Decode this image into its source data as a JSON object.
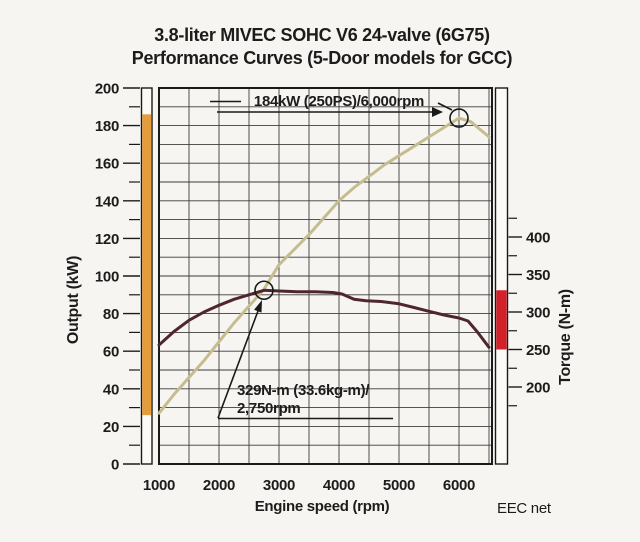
{
  "title": {
    "line1": "3.8-liter MIVEC SOHC V6 24-valve (6G75)",
    "line2": "Performance Curves (5-Door models for GCC)"
  },
  "footer_note": "EEC net",
  "colors": {
    "background": "#f7f5f1",
    "grid": "#3c3c3c",
    "frame": "#1a1a1a",
    "power_curve": "#c6bd8f",
    "torque_curve": "#50262e",
    "power_range_bar": "#e49c3c",
    "torque_range_bar": "#d22128",
    "text": "#1c1c1c"
  },
  "chart_data": {
    "type": "line",
    "title": "3.8-liter MIVEC SOHC V6 24-valve (6G75) Performance Curves (5-Door models for GCC)",
    "x_axis": {
      "label": "Engine speed (rpm)",
      "min": 1000,
      "max": 6550,
      "tick_labels": [
        1000,
        2000,
        3000,
        4000,
        5000,
        6000
      ],
      "gridline_step": 500,
      "grid": true
    },
    "y_left_axis": {
      "label": "Output (kW)",
      "min": 0,
      "max": 200,
      "tick_labels": [
        0,
        20,
        40,
        60,
        80,
        100,
        120,
        140,
        160,
        180,
        200
      ],
      "minor_ticks": [
        10,
        30,
        50,
        70,
        90,
        110,
        130,
        150,
        170,
        190
      ],
      "gridline_step": 10,
      "grid": true
    },
    "y_right_axis": {
      "label": "Torque (N-m)",
      "tick_labels": [
        200,
        250,
        300,
        350,
        400
      ],
      "minor_ticks": [
        175,
        225,
        275,
        325,
        375,
        425
      ]
    },
    "series": [
      {
        "name": "output-power",
        "axis": "left",
        "units": "kW",
        "color": "#c6bd8f",
        "points": [
          [
            1000,
            27
          ],
          [
            1250,
            37
          ],
          [
            1500,
            46
          ],
          [
            1750,
            55
          ],
          [
            2000,
            65
          ],
          [
            2250,
            75
          ],
          [
            2500,
            84
          ],
          [
            2750,
            93
          ],
          [
            3000,
            106
          ],
          [
            3250,
            114
          ],
          [
            3500,
            122
          ],
          [
            3750,
            131
          ],
          [
            4000,
            140
          ],
          [
            4250,
            147
          ],
          [
            4500,
            153
          ],
          [
            4750,
            159
          ],
          [
            5000,
            164
          ],
          [
            5250,
            169
          ],
          [
            5500,
            174
          ],
          [
            5750,
            179
          ],
          [
            6000,
            184
          ],
          [
            6200,
            182
          ],
          [
            6350,
            178
          ],
          [
            6500,
            174
          ]
        ]
      },
      {
        "name": "torque",
        "axis": "right",
        "units": "N-m",
        "color": "#50262e",
        "points": [
          [
            1000,
            256
          ],
          [
            1250,
            274
          ],
          [
            1500,
            289
          ],
          [
            1750,
            300
          ],
          [
            2000,
            309
          ],
          [
            2250,
            317
          ],
          [
            2500,
            323
          ],
          [
            2750,
            329
          ],
          [
            3000,
            328
          ],
          [
            3300,
            327
          ],
          [
            3600,
            327
          ],
          [
            3900,
            326
          ],
          [
            4050,
            324
          ],
          [
            4250,
            317
          ],
          [
            4450,
            315
          ],
          [
            4700,
            314
          ],
          [
            5000,
            311
          ],
          [
            5250,
            306
          ],
          [
            5500,
            301
          ],
          [
            5750,
            296
          ],
          [
            6000,
            292
          ],
          [
            6150,
            288
          ],
          [
            6300,
            274
          ],
          [
            6500,
            253
          ]
        ]
      }
    ],
    "annotations": [
      {
        "name": "max-power",
        "label": "184kW (250PS)/6,000rpm",
        "rpm": 6000,
        "value": 184,
        "axis": "left"
      },
      {
        "name": "max-torque",
        "label_line1": "329N-m (33.6kg-m)/",
        "label_line2": "2,750rpm",
        "rpm": 2750,
        "value": 329,
        "axis": "right"
      }
    ],
    "range_bars": [
      {
        "name": "power-range-bar",
        "axis": "left",
        "from": 26,
        "to": 186,
        "color": "#e49c3c"
      },
      {
        "name": "torque-range-bar",
        "axis": "right",
        "from": 250,
        "to": 329,
        "color": "#d22128"
      }
    ],
    "legend_position": "none"
  }
}
